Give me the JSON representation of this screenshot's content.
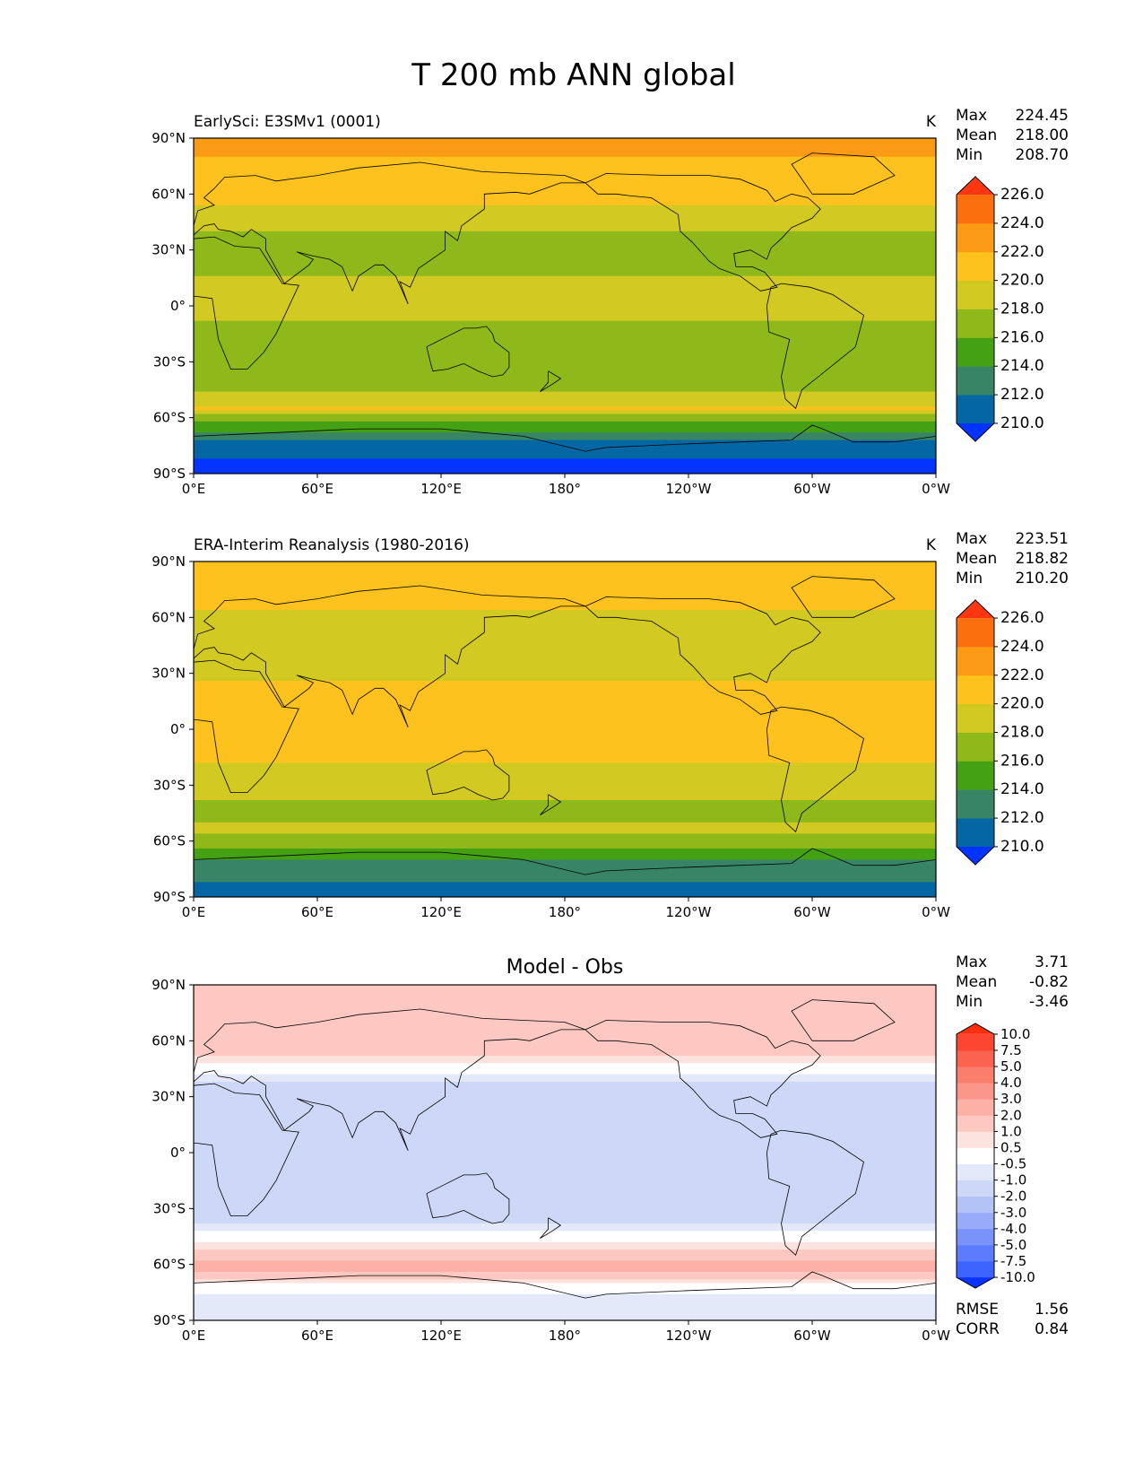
{
  "figure_title": "T 200 mb ANN global",
  "chart_data": [
    {
      "type": "heatmap",
      "panel_title": "EarlySci: E3SMv1 (0001)",
      "units": "K",
      "stats": [
        {
          "label": "Max",
          "value": "224.45"
        },
        {
          "label": "Mean",
          "value": "218.00"
        },
        {
          "label": "Min",
          "value": "208.70"
        }
      ],
      "x_ticks": [
        "0°E",
        "60°E",
        "120°E",
        "180°",
        "120°W",
        "60°W",
        "0°W"
      ],
      "y_ticks": [
        "90°N",
        "60°N",
        "30°N",
        "0°",
        "30°S",
        "60°S",
        "90°S"
      ],
      "colorbar": {
        "colors": [
          "#0233ff",
          "#0467a4",
          "#388467",
          "#45a114",
          "#8fb91b",
          "#d2c922",
          "#fdc21e",
          "#fb9a15",
          "#fc6f0e",
          "#fe3713"
        ],
        "labels": [
          "210.0",
          "212.0",
          "214.0",
          "216.0",
          "218.0",
          "220.0",
          "222.0",
          "224.0",
          "226.0"
        ]
      },
      "zonal_profile": [
        {
          "lat": 90,
          "value": 222.5
        },
        {
          "lat": 70,
          "value": 221.5
        },
        {
          "lat": 55,
          "value": 220.0
        },
        {
          "lat": 40,
          "value": 218.0
        },
        {
          "lat": 25,
          "value": 217.0
        },
        {
          "lat": 10,
          "value": 218.5
        },
        {
          "lat": 0,
          "value": 218.5
        },
        {
          "lat": -15,
          "value": 217.5
        },
        {
          "lat": -30,
          "value": 216.0
        },
        {
          "lat": -45,
          "value": 217.5
        },
        {
          "lat": -55,
          "value": 220.0
        },
        {
          "lat": -62,
          "value": 216.0
        },
        {
          "lat": -68,
          "value": 214.0
        },
        {
          "lat": -75,
          "value": 211.0
        },
        {
          "lat": -90,
          "value": 209.0
        }
      ]
    },
    {
      "type": "heatmap",
      "panel_title": "ERA-Interim Reanalysis (1980-2016)",
      "units": "K",
      "stats": [
        {
          "label": "Max",
          "value": "223.51"
        },
        {
          "label": "Mean",
          "value": "218.82"
        },
        {
          "label": "Min",
          "value": "210.20"
        }
      ],
      "x_ticks": [
        "0°E",
        "60°E",
        "120°E",
        "180°",
        "120°W",
        "60°W",
        "0°W"
      ],
      "y_ticks": [
        "90°N",
        "60°N",
        "30°N",
        "0°",
        "30°S",
        "60°S",
        "90°S"
      ],
      "colorbar": {
        "colors": [
          "#0233ff",
          "#0467a4",
          "#388467",
          "#45a114",
          "#8fb91b",
          "#d2c922",
          "#fdc21e",
          "#fb9a15",
          "#fc6f0e",
          "#fe3713"
        ],
        "labels": [
          "210.0",
          "212.0",
          "214.0",
          "216.0",
          "218.0",
          "220.0",
          "222.0",
          "224.0",
          "226.0"
        ]
      },
      "zonal_profile": [
        {
          "lat": 90,
          "value": 221.5
        },
        {
          "lat": 70,
          "value": 220.5
        },
        {
          "lat": 55,
          "value": 219.0
        },
        {
          "lat": 40,
          "value": 219.0
        },
        {
          "lat": 25,
          "value": 220.0
        },
        {
          "lat": 10,
          "value": 220.0
        },
        {
          "lat": 0,
          "value": 220.0
        },
        {
          "lat": -15,
          "value": 220.5
        },
        {
          "lat": -30,
          "value": 218.5
        },
        {
          "lat": -45,
          "value": 217.5
        },
        {
          "lat": -55,
          "value": 218.5
        },
        {
          "lat": -62,
          "value": 216.5
        },
        {
          "lat": -68,
          "value": 214.5
        },
        {
          "lat": -75,
          "value": 212.5
        },
        {
          "lat": -90,
          "value": 211.5
        }
      ]
    },
    {
      "type": "heatmap",
      "panel_title": "Model - Obs",
      "units": "",
      "stats": [
        {
          "label": "Max",
          "value": "3.71"
        },
        {
          "label": "Mean",
          "value": "-0.82"
        },
        {
          "label": "Min",
          "value": "-3.46"
        }
      ],
      "extra_stats": [
        {
          "label": "RMSE",
          "value": "1.56"
        },
        {
          "label": "CORR",
          "value": "0.84"
        }
      ],
      "x_ticks": [
        "0°E",
        "60°E",
        "120°E",
        "180°",
        "120°W",
        "60°W",
        "0°W"
      ],
      "y_ticks": [
        "90°N",
        "60°N",
        "30°N",
        "0°",
        "30°S",
        "60°S",
        "90°S"
      ],
      "colorbar": {
        "colors": [
          "#0a33ff",
          "#3c62ff",
          "#5d7bfd",
          "#7a93fb",
          "#98abf8",
          "#b4c3f5",
          "#cdd7f7",
          "#e4e9fa",
          "#ffffff",
          "#fde3df",
          "#fcc8c1",
          "#fcb0a6",
          "#fb978a",
          "#fb7e6d",
          "#fb6350",
          "#fb4631",
          "#fd2f10"
        ],
        "labels": [
          "-10.0",
          "-7.5",
          "-5.0",
          "-4.0",
          "-3.0",
          "-2.0",
          "-1.0",
          "-0.5",
          "0.5",
          "1.0",
          "2.0",
          "3.0",
          "4.0",
          "5.0",
          "7.5",
          "10.0"
        ]
      },
      "zonal_profile": [
        {
          "lat": 90,
          "value": 1.0
        },
        {
          "lat": 75,
          "value": 1.5
        },
        {
          "lat": 60,
          "value": 2.0
        },
        {
          "lat": 45,
          "value": 0.0
        },
        {
          "lat": 35,
          "value": -1.5
        },
        {
          "lat": 20,
          "value": -1.5
        },
        {
          "lat": 0,
          "value": -1.5
        },
        {
          "lat": -20,
          "value": -1.5
        },
        {
          "lat": -35,
          "value": -1.5
        },
        {
          "lat": -45,
          "value": 0.0
        },
        {
          "lat": -55,
          "value": 1.5
        },
        {
          "lat": -62,
          "value": 2.5
        },
        {
          "lat": -70,
          "value": 0.5
        },
        {
          "lat": -80,
          "value": -1.0
        },
        {
          "lat": -90,
          "value": -1.0
        }
      ]
    }
  ]
}
